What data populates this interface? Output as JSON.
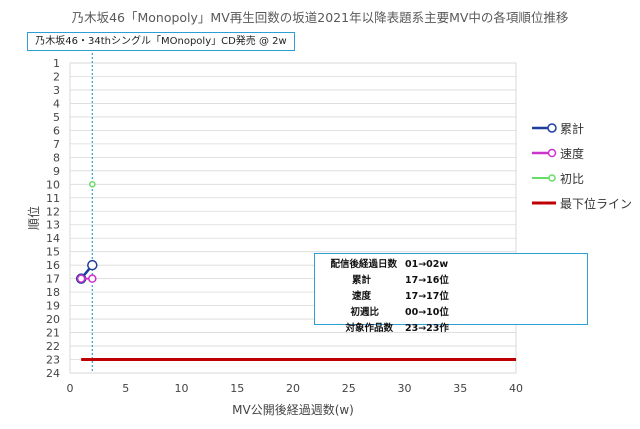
{
  "title": "乃木坂46「Monopoly」MV再生回数の坂道2021年以降表題系主要MV中の各項順位推移",
  "event_label": "乃木坂46・34thシングル「MOnopoly」CD発売 @ 2w",
  "info_box": {
    "rows": [
      {
        "label": "配信後経過日数",
        "value": "01→02w"
      },
      {
        "label": "累計",
        "value": "17→16位"
      },
      {
        "label": "速度",
        "value": "17→17位"
      },
      {
        "label": "初週比",
        "value": "00→10位"
      },
      {
        "label": "対象作品数",
        "value": "23→23作"
      }
    ]
  },
  "colors": {
    "cumulative": "#1F3F9C",
    "speed": "#CC33CC",
    "first_week_ratio": "#66DD66",
    "bottom_line": "#C00000",
    "event_line": "#2E9FD4"
  },
  "chart_data": {
    "type": "line",
    "xlabel": "MV公開後経過週数(w)",
    "ylabel": "順位",
    "xlim": [
      0,
      40
    ],
    "ylim": [
      1,
      24
    ],
    "y_inverted": true,
    "x_ticks": [
      0,
      5,
      10,
      15,
      20,
      25,
      30,
      35,
      40
    ],
    "y_ticks": [
      1,
      2,
      3,
      4,
      5,
      6,
      7,
      8,
      9,
      10,
      11,
      12,
      13,
      14,
      15,
      16,
      17,
      18,
      19,
      20,
      21,
      22,
      23,
      24
    ],
    "grid": "horizontal",
    "legend_position": "right",
    "event_x": 2,
    "series": [
      {
        "name": "累計",
        "key": "cumulative",
        "x": [
          1,
          2
        ],
        "y": [
          17,
          16
        ]
      },
      {
        "name": "速度",
        "key": "speed",
        "x": [
          1,
          2
        ],
        "y": [
          17,
          17
        ]
      },
      {
        "name": "初比",
        "key": "first_week_ratio",
        "x": [
          2
        ],
        "y": [
          10
        ]
      },
      {
        "name": "最下位ライン",
        "key": "bottom_line",
        "x": [
          1,
          40
        ],
        "y": [
          23,
          23
        ]
      }
    ]
  }
}
